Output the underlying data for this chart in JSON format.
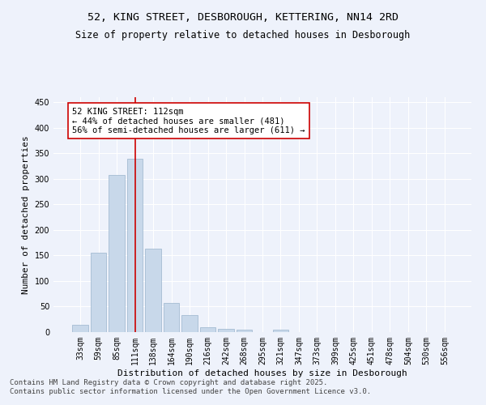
{
  "title_line1": "52, KING STREET, DESBOROUGH, KETTERING, NN14 2RD",
  "title_line2": "Size of property relative to detached houses in Desborough",
  "xlabel": "Distribution of detached houses by size in Desborough",
  "ylabel": "Number of detached properties",
  "bar_color": "#c8d8ea",
  "bar_edge_color": "#9ab4cc",
  "categories": [
    "33sqm",
    "59sqm",
    "85sqm",
    "111sqm",
    "138sqm",
    "164sqm",
    "190sqm",
    "216sqm",
    "242sqm",
    "268sqm",
    "295sqm",
    "321sqm",
    "347sqm",
    "373sqm",
    "399sqm",
    "425sqm",
    "451sqm",
    "478sqm",
    "504sqm",
    "530sqm",
    "556sqm"
  ],
  "values": [
    15,
    155,
    308,
    340,
    163,
    57,
    33,
    10,
    7,
    5,
    0,
    4,
    0,
    0,
    0,
    0,
    0,
    0,
    0,
    0,
    0
  ],
  "ylim": [
    0,
    460
  ],
  "yticks": [
    0,
    50,
    100,
    150,
    200,
    250,
    300,
    350,
    400,
    450
  ],
  "annotation_text_line1": "52 KING STREET: 112sqm",
  "annotation_text_line2": "← 44% of detached houses are smaller (481)",
  "annotation_text_line3": "56% of semi-detached houses are larger (611) →",
  "property_line_x": "111sqm",
  "footer_line1": "Contains HM Land Registry data © Crown copyright and database right 2025.",
  "footer_line2": "Contains public sector information licensed under the Open Government Licence v3.0.",
  "background_color": "#eef2fb",
  "grid_color": "#ffffff",
  "annotation_box_color": "#ffffff",
  "annotation_box_edge_color": "#cc0000",
  "property_line_color": "#cc0000",
  "title_fontsize": 9.5,
  "subtitle_fontsize": 8.5,
  "axis_label_fontsize": 8,
  "tick_fontsize": 7,
  "annotation_fontsize": 7.5,
  "footer_fontsize": 6.5
}
